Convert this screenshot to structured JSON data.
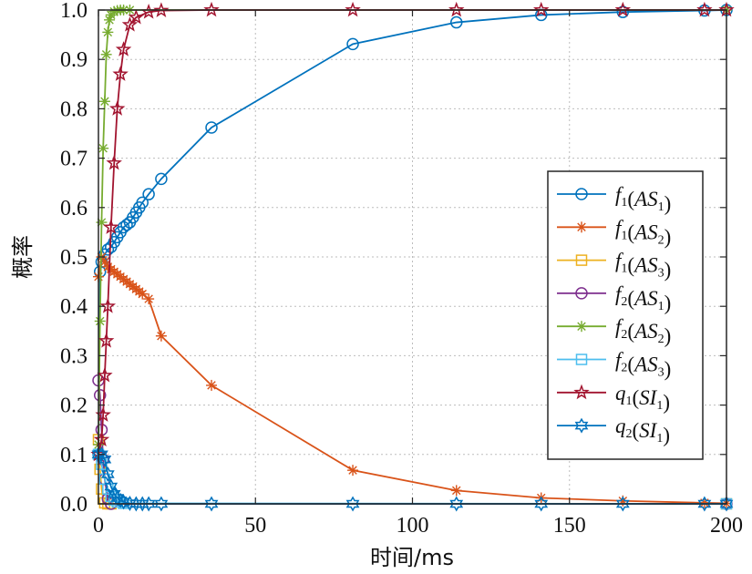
{
  "chart_data": {
    "type": "line",
    "title": "",
    "xlabel": "时间/ms",
    "ylabel": "概率",
    "xlim": [
      0,
      200
    ],
    "ylim": [
      0,
      1
    ],
    "x_ticks": [
      "0",
      "50",
      "100",
      "150",
      "200"
    ],
    "y_ticks": [
      "0.0",
      "0.1",
      "0.2",
      "0.3",
      "0.4",
      "0.5",
      "0.6",
      "0.7",
      "0.8",
      "0.9",
      "1.0"
    ],
    "grid": true,
    "legend_position": "right",
    "series": [
      {
        "name": "f1(AS1)",
        "legend": {
          "fn": "f",
          "fs": "1",
          "arg": "AS",
          "as": "1"
        },
        "color": "#0072BD",
        "marker": "circle",
        "x": [
          0,
          0.5,
          1,
          2,
          3,
          4,
          5,
          6,
          7,
          8,
          9,
          10,
          11,
          12,
          13,
          14,
          16,
          20,
          36,
          81,
          114,
          141,
          167,
          193,
          200
        ],
        "y": [
          0.1,
          0.47,
          0.49,
          0.505,
          0.515,
          0.52,
          0.53,
          0.54,
          0.55,
          0.56,
          0.565,
          0.57,
          0.58,
          0.59,
          0.6,
          0.61,
          0.627,
          0.658,
          0.762,
          0.931,
          0.975,
          0.99,
          0.996,
          0.999,
          1.0
        ]
      },
      {
        "name": "f1(AS2)",
        "legend": {
          "fn": "f",
          "fs": "1",
          "arg": "AS",
          "as": "2"
        },
        "color": "#D95319",
        "marker": "asterisk",
        "x": [
          0,
          1,
          2,
          3,
          4,
          5,
          6,
          7,
          8,
          9,
          10,
          11,
          12,
          13,
          14,
          16,
          20,
          36,
          81,
          114,
          141,
          167,
          193,
          200
        ],
        "y": [
          0.46,
          0.5,
          0.49,
          0.48,
          0.475,
          0.47,
          0.465,
          0.46,
          0.455,
          0.45,
          0.445,
          0.44,
          0.435,
          0.43,
          0.425,
          0.415,
          0.34,
          0.24,
          0.068,
          0.027,
          0.012,
          0.006,
          0.002,
          0.001
        ]
      },
      {
        "name": "f1(AS3)",
        "legend": {
          "fn": "f",
          "fs": "1",
          "arg": "AS",
          "as": "3"
        },
        "color": "#EDB120",
        "marker": "square",
        "x": [
          0,
          0.5,
          1,
          1.5,
          2,
          3,
          4,
          200
        ],
        "y": [
          0.13,
          0.07,
          0.03,
          0.01,
          0.002,
          0,
          0,
          0
        ]
      },
      {
        "name": "f2(AS1)",
        "legend": {
          "fn": "f",
          "fs": "2",
          "arg": "AS",
          "as": "1"
        },
        "color": "#7E2F8E",
        "marker": "circle",
        "x": [
          0,
          0.5,
          1,
          1.5,
          2,
          3,
          4,
          200
        ],
        "y": [
          0.25,
          0.22,
          0.15,
          0.09,
          0.05,
          0.01,
          0,
          0
        ]
      },
      {
        "name": "f2(AS2)",
        "legend": {
          "fn": "f",
          "fs": "2",
          "arg": "AS",
          "as": "2"
        },
        "color": "#77AC30",
        "marker": "asterisk",
        "x": [
          0,
          0.5,
          1,
          1.5,
          2,
          2.5,
          3,
          3.5,
          4,
          5,
          6,
          7,
          8,
          10,
          200
        ],
        "y": [
          0.12,
          0.37,
          0.57,
          0.72,
          0.815,
          0.91,
          0.955,
          0.98,
          0.99,
          0.997,
          0.999,
          1.0,
          1.0,
          1.0,
          1.0
        ]
      },
      {
        "name": "f2(AS3)",
        "legend": {
          "fn": "f",
          "fs": "2",
          "arg": "AS",
          "as": "3"
        },
        "color": "#4DBEEE",
        "marker": "square",
        "x": [
          0,
          1,
          2,
          3,
          4,
          5,
          6,
          8,
          200
        ],
        "y": [
          0.1,
          0.08,
          0.05,
          0.03,
          0.015,
          0.008,
          0.004,
          0.001,
          0
        ]
      },
      {
        "name": "q1(SI1)",
        "legend": {
          "fn": "q",
          "fs": "1",
          "arg": "SI",
          "as": "1"
        },
        "color": "#A2142F",
        "marker": "star",
        "x": [
          0,
          1,
          1.5,
          2,
          2.5,
          3,
          4,
          5,
          6,
          7,
          8,
          10,
          12,
          16,
          20,
          36,
          81,
          114,
          141,
          167,
          193,
          200
        ],
        "y": [
          0.1,
          0.13,
          0.18,
          0.26,
          0.33,
          0.4,
          0.56,
          0.69,
          0.8,
          0.87,
          0.92,
          0.97,
          0.985,
          0.996,
          0.999,
          1.0,
          1.0,
          1.0,
          1.0,
          1.0,
          1.0,
          1.0
        ]
      },
      {
        "name": "q2(SI1)",
        "legend": {
          "fn": "q",
          "fs": "2",
          "arg": "SI",
          "as": "1"
        },
        "color": "#0072BD",
        "marker": "hexagram",
        "x": [
          0,
          1,
          2,
          3,
          4,
          5,
          6,
          7,
          8,
          10,
          12,
          14,
          16,
          20,
          36,
          81,
          114,
          141,
          167,
          193,
          200
        ],
        "y": [
          0.1,
          0.1,
          0.09,
          0.06,
          0.035,
          0.02,
          0.012,
          0.007,
          0.004,
          0.001,
          0,
          0,
          0,
          0,
          0,
          0,
          0,
          0,
          0,
          0,
          0
        ]
      }
    ]
  }
}
